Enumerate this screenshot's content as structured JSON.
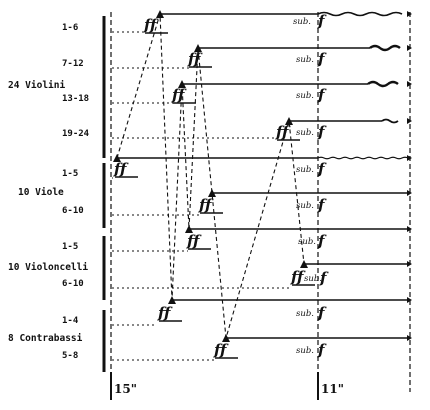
{
  "groups": [
    {
      "label": "24 Violini",
      "desks": [
        "1-6",
        "7-12",
        "13-18",
        "19-24"
      ]
    },
    {
      "label": "10 Viole",
      "desks": [
        "1-5",
        "6-10"
      ]
    },
    {
      "label": "10 Violoncelli",
      "desks": [
        "1-5",
        "6-10"
      ]
    },
    {
      "label": "8 Contrabassi",
      "desks": [
        "1-4",
        "5-8"
      ]
    }
  ],
  "dynamics": {
    "entry": "ff",
    "sub_word": "sub.",
    "sub_dyn": "f"
  },
  "timing": {
    "first_section": "15\"",
    "second_section": "11\""
  },
  "sustain_style": {
    "violini": [
      "wavy",
      "thick-wavy-end",
      "thick-wavy-end",
      "wavy-end"
    ],
    "viole": [
      "wavy-thin",
      "plain"
    ],
    "violoncelli": [
      "plain",
      "plain"
    ],
    "contrabassi": [
      "plain",
      "plain"
    ]
  }
}
